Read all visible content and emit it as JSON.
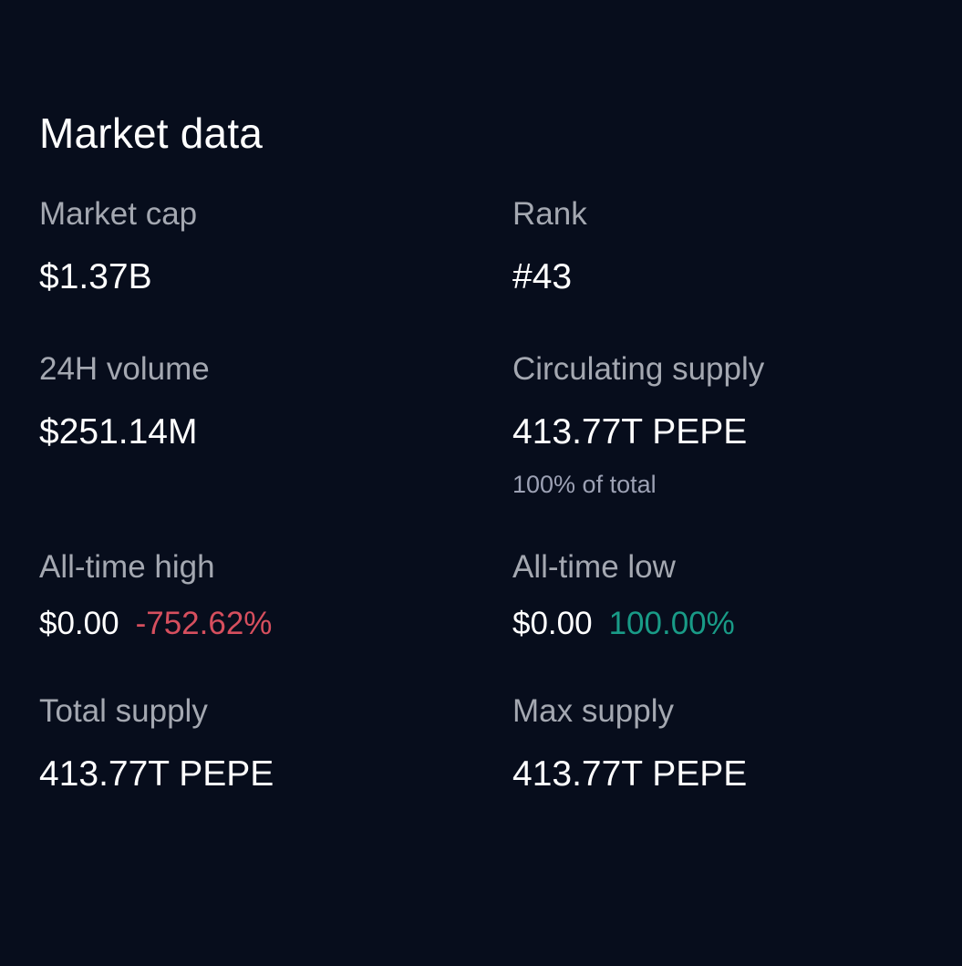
{
  "section": {
    "title": "Market data"
  },
  "market_cap": {
    "label": "Market cap",
    "value": "$1.37B"
  },
  "rank": {
    "label": "Rank",
    "value": "#43"
  },
  "volume_24h": {
    "label": "24H volume",
    "value": "$251.14M"
  },
  "circulating_supply": {
    "label": "Circulating supply",
    "value": "413.77T PEPE",
    "note": "100% of total"
  },
  "all_time_high": {
    "label": "All-time high",
    "value": "$0.00",
    "change": "-752.62%"
  },
  "all_time_low": {
    "label": "All-time low",
    "value": "$0.00",
    "change": "100.00%"
  },
  "total_supply": {
    "label": "Total supply",
    "value": "413.77T PEPE"
  },
  "max_supply": {
    "label": "Max supply",
    "value": "413.77T PEPE"
  },
  "colors": {
    "background": "#070d1c",
    "label": "#a4a8b1",
    "value": "#ffffff",
    "negative": "#d64f5e",
    "positive": "#199b87"
  }
}
